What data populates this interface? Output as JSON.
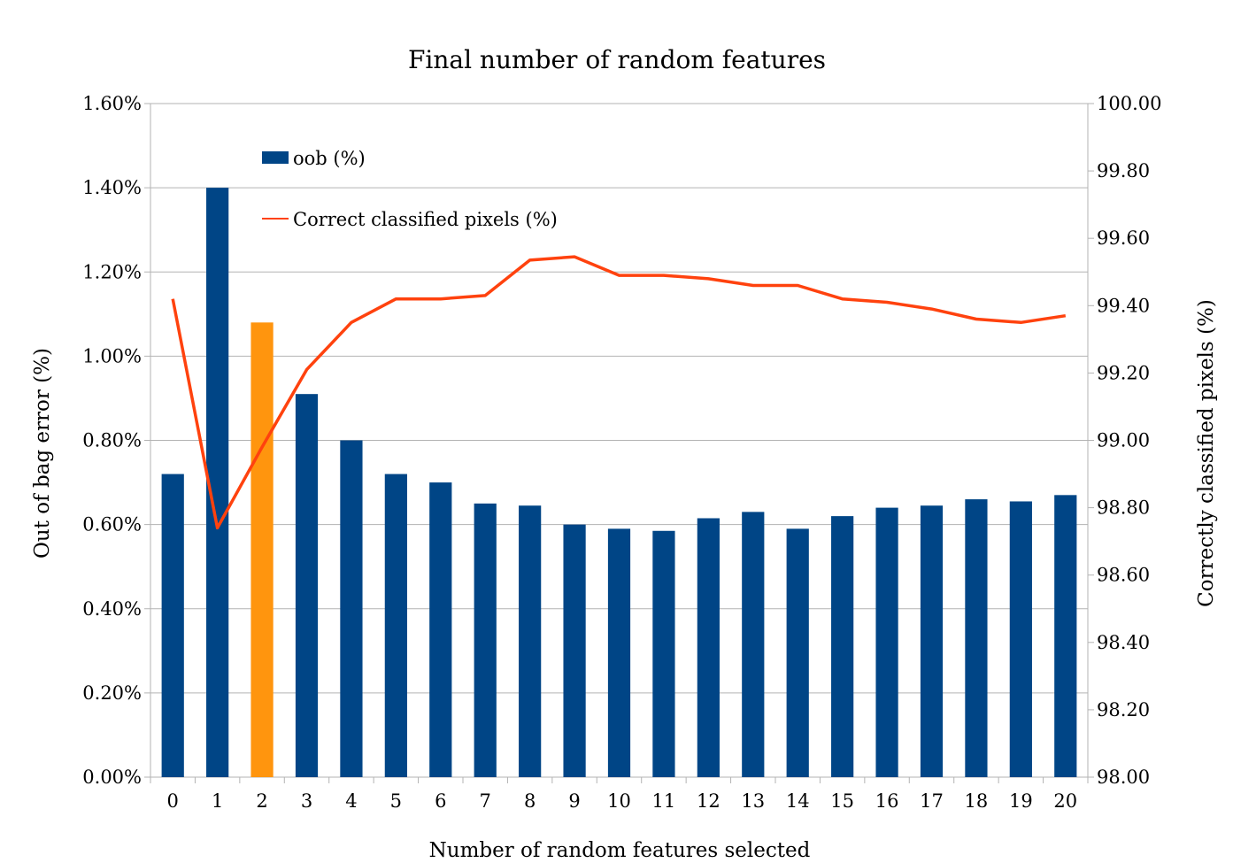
{
  "chart_data": {
    "type": "bar",
    "title": "Final number of random features",
    "xlabel": "Number of random features selected",
    "ylabel": "Out of bag error (%)",
    "y2label": "Correctly classified pixels (%)",
    "categories": [
      "0",
      "1",
      "2",
      "3",
      "4",
      "5",
      "6",
      "7",
      "8",
      "9",
      "10",
      "11",
      "12",
      "13",
      "14",
      "15",
      "16",
      "17",
      "18",
      "19",
      "20"
    ],
    "ylim": [
      0,
      1.6
    ],
    "yticks": [
      "0.00%",
      "0.20%",
      "0.40%",
      "0.60%",
      "0.80%",
      "1.00%",
      "1.20%",
      "1.40%",
      "1.60%"
    ],
    "y2lim": [
      98.0,
      100.0
    ],
    "y2ticks": [
      "98.00",
      "98.20",
      "98.40",
      "98.60",
      "98.80",
      "99.00",
      "99.20",
      "99.40",
      "99.60",
      "99.80",
      "100.00"
    ],
    "grid": true,
    "legend_position": "top-left",
    "series": [
      {
        "name": "oob (%)",
        "type": "bar",
        "axis": "left",
        "color": "#004586",
        "highlight_index": 2,
        "highlight_color": "#ff950e",
        "values": [
          0.72,
          1.4,
          1.08,
          0.91,
          0.8,
          0.72,
          0.7,
          0.65,
          0.645,
          0.6,
          0.59,
          0.585,
          0.615,
          0.63,
          0.59,
          0.62,
          0.64,
          0.645,
          0.66,
          0.655,
          0.67
        ]
      },
      {
        "name": "Correct classified pixels (%)",
        "type": "line",
        "axis": "right",
        "color": "#ff420e",
        "values": [
          99.42,
          98.74,
          98.98,
          99.21,
          99.35,
          99.42,
          99.42,
          99.43,
          99.535,
          99.545,
          99.49,
          99.49,
          99.48,
          99.46,
          99.46,
          99.42,
          99.41,
          99.39,
          99.36,
          99.35,
          99.37
        ]
      }
    ]
  }
}
